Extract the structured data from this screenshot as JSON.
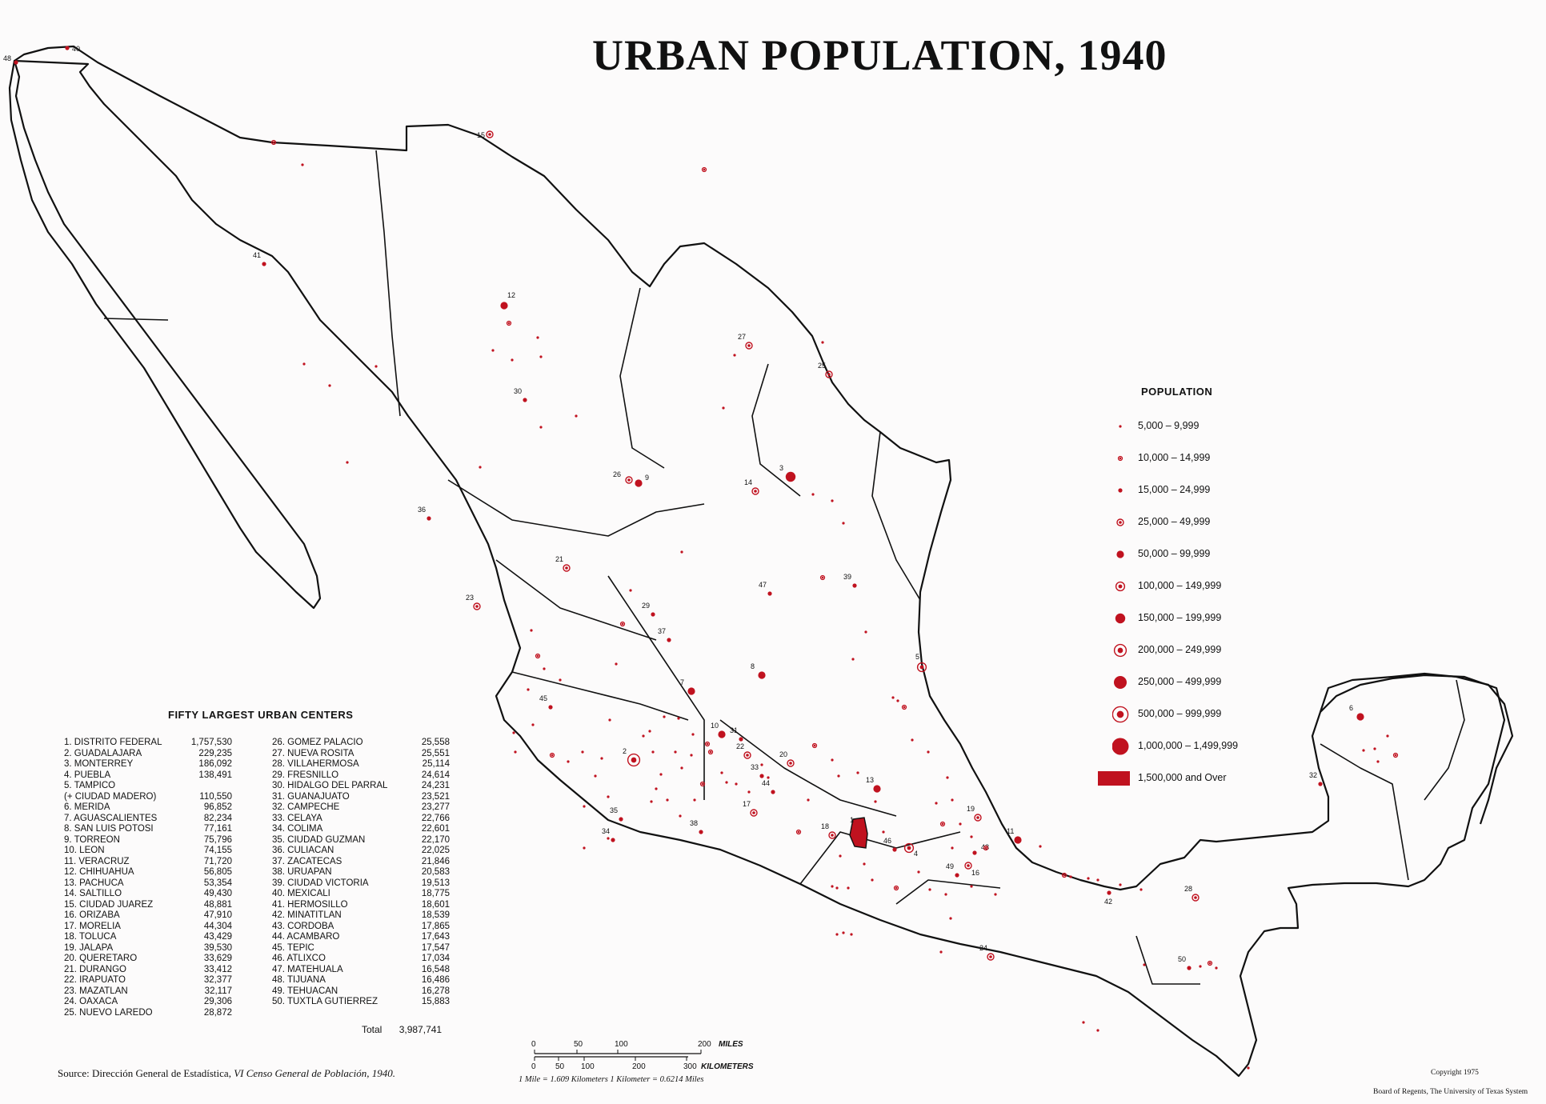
{
  "title": "URBAN POPULATION, 1940",
  "colors": {
    "dot": "#c0121f",
    "border": "#111111",
    "paper": "#fcfbfb"
  },
  "legend": {
    "title": "POPULATION",
    "items": [
      {
        "label": "5,000 – 9,999",
        "symbol": "dot-xs"
      },
      {
        "label": "10,000 – 14,999",
        "symbol": "ring-xs"
      },
      {
        "label": "15,000 – 24,999",
        "symbol": "dot-s"
      },
      {
        "label": "25,000 – 49,999",
        "symbol": "ring-s"
      },
      {
        "label": "50,000 – 99,999",
        "symbol": "dot-m"
      },
      {
        "label": "100,000 – 149,999",
        "symbol": "ring-m"
      },
      {
        "label": "150,000 – 199,999",
        "symbol": "dot-l"
      },
      {
        "label": "200,000 – 249,999",
        "symbol": "ring-l"
      },
      {
        "label": "250,000 – 499,999",
        "symbol": "dot-xl"
      },
      {
        "label": "500,000 – 999,999",
        "symbol": "ring-xl"
      },
      {
        "label": "1,000,000 – 1,499,999",
        "symbol": "dot-xxl"
      },
      {
        "label": "1,500,000 and Over",
        "symbol": "rect"
      }
    ]
  },
  "table": {
    "title": "FIFTY LARGEST URBAN CENTERS",
    "col1": [
      {
        "name": "1. DISTRITO FEDERAL",
        "pop": "1,757,530"
      },
      {
        "name": "2. GUADALAJARA",
        "pop": "229,235"
      },
      {
        "name": "3. MONTERREY",
        "pop": "186,092"
      },
      {
        "name": "4. PUEBLA",
        "pop": "138,491"
      },
      {
        "name": "5. TAMPICO",
        "pop": ""
      },
      {
        "name": "    (+ CIUDAD MADERO)",
        "pop": "110,550"
      },
      {
        "name": "6. MERIDA",
        "pop": "96,852"
      },
      {
        "name": "7. AGUASCALIENTES",
        "pop": "82,234"
      },
      {
        "name": "8. SAN LUIS POTOSI",
        "pop": "77,161"
      },
      {
        "name": "9. TORREON",
        "pop": "75,796"
      },
      {
        "name": "10. LEON",
        "pop": "74,155"
      },
      {
        "name": "11. VERACRUZ",
        "pop": "71,720"
      },
      {
        "name": "12. CHIHUAHUA",
        "pop": "56,805"
      },
      {
        "name": "13. PACHUCA",
        "pop": "53,354"
      },
      {
        "name": "14. SALTILLO",
        "pop": "49,430"
      },
      {
        "name": "15. CIUDAD JUAREZ",
        "pop": "48,881"
      },
      {
        "name": "16. ORIZABA",
        "pop": "47,910"
      },
      {
        "name": "17. MORELIA",
        "pop": "44,304"
      },
      {
        "name": "18. TOLUCA",
        "pop": "43,429"
      },
      {
        "name": "19. JALAPA",
        "pop": "39,530"
      },
      {
        "name": "20. QUERETARO",
        "pop": "33,629"
      },
      {
        "name": "21. DURANGO",
        "pop": "33,412"
      },
      {
        "name": "22. IRAPUATO",
        "pop": "32,377"
      },
      {
        "name": "23. MAZATLAN",
        "pop": "32,117"
      },
      {
        "name": "24. OAXACA",
        "pop": "29,306"
      },
      {
        "name": "25. NUEVO LAREDO",
        "pop": "28,872"
      }
    ],
    "col2": [
      {
        "name": "26. GOMEZ PALACIO",
        "pop": "25,558"
      },
      {
        "name": "27. NUEVA ROSITA",
        "pop": "25,551"
      },
      {
        "name": "28. VILLAHERMOSA",
        "pop": "25,114"
      },
      {
        "name": "29. FRESNILLO",
        "pop": "24,614"
      },
      {
        "name": "30. HIDALGO DEL PARRAL",
        "pop": "24,231"
      },
      {
        "name": "31. GUANAJUATO",
        "pop": "23,521"
      },
      {
        "name": "32. CAMPECHE",
        "pop": "23,277"
      },
      {
        "name": "33. CELAYA",
        "pop": "22,766"
      },
      {
        "name": "34. COLIMA",
        "pop": "22,601"
      },
      {
        "name": "35. CIUDAD GUZMAN",
        "pop": "22,170"
      },
      {
        "name": "36. CULIACAN",
        "pop": "22,025"
      },
      {
        "name": "37. ZACATECAS",
        "pop": "21,846"
      },
      {
        "name": "38. URUAPAN",
        "pop": "20,583"
      },
      {
        "name": "39. CIUDAD VICTORIA",
        "pop": "19,513"
      },
      {
        "name": "40. MEXICALI",
        "pop": "18,775"
      },
      {
        "name": "41. HERMOSILLO",
        "pop": "18,601"
      },
      {
        "name": "42. MINATITLAN",
        "pop": "18,539"
      },
      {
        "name": "43. CORDOBA",
        "pop": "17,865"
      },
      {
        "name": "44. ACAMBARO",
        "pop": "17,643"
      },
      {
        "name": "45. TEPIC",
        "pop": "17,547"
      },
      {
        "name": "46. ATLIXCO",
        "pop": "17,034"
      },
      {
        "name": "47. MATEHUALA",
        "pop": "16,548"
      },
      {
        "name": "48. TIJUANA",
        "pop": "16,486"
      },
      {
        "name": "49. TEHUACAN",
        "pop": "16,278"
      },
      {
        "name": "50. TUXTLA GUTIERREZ",
        "pop": "15,883"
      }
    ],
    "total_label": "Total",
    "total_value": "3,987,741"
  },
  "source": {
    "prefix": "Source:",
    "text": "Dirección General de Estadística,",
    "italic": "VI Censo General de Población,",
    "year": "1940."
  },
  "scale": {
    "miles_ticks": [
      "0",
      "50",
      "100",
      "200"
    ],
    "miles_unit": "MILES",
    "km_ticks": [
      "0",
      "50",
      "100",
      "200",
      "300"
    ],
    "km_unit": "KILOMETERS",
    "note": "1 Mile = 1.609 Kilometers     1 Kilometer = 0.6214 Miles"
  },
  "copyright": "Copyright 1975",
  "board": "Board of Regents, The University of Texas System",
  "cities": [
    {
      "n": "1",
      "sym": "rect"
    },
    {
      "n": "2",
      "sym": "ring-l"
    },
    {
      "n": "3",
      "sym": "dot-l"
    },
    {
      "n": "4",
      "sym": "ring-m"
    },
    {
      "n": "5",
      "sym": "ring-m"
    },
    {
      "n": "6",
      "sym": "dot-m"
    },
    {
      "n": "7",
      "sym": "dot-m"
    },
    {
      "n": "8",
      "sym": "dot-m"
    },
    {
      "n": "9",
      "sym": "dot-m"
    },
    {
      "n": "10",
      "sym": "dot-m"
    },
    {
      "n": "11",
      "sym": "dot-m"
    },
    {
      "n": "12",
      "sym": "dot-m"
    },
    {
      "n": "13",
      "sym": "dot-m"
    },
    {
      "n": "14",
      "sym": "ring-s"
    },
    {
      "n": "15",
      "sym": "ring-s"
    },
    {
      "n": "16",
      "sym": "ring-s"
    },
    {
      "n": "17",
      "sym": "ring-s"
    },
    {
      "n": "18",
      "sym": "ring-s"
    },
    {
      "n": "19",
      "sym": "ring-s"
    },
    {
      "n": "20",
      "sym": "ring-s"
    },
    {
      "n": "21",
      "sym": "ring-s"
    },
    {
      "n": "22",
      "sym": "ring-s"
    },
    {
      "n": "23",
      "sym": "ring-s"
    },
    {
      "n": "24",
      "sym": "ring-s"
    },
    {
      "n": "25",
      "sym": "ring-s"
    },
    {
      "n": "26",
      "sym": "ring-s"
    },
    {
      "n": "27",
      "sym": "ring-s"
    },
    {
      "n": "28",
      "sym": "ring-s"
    },
    {
      "n": "29",
      "sym": "dot-s"
    },
    {
      "n": "30",
      "sym": "dot-s"
    },
    {
      "n": "31",
      "sym": "dot-s"
    },
    {
      "n": "32",
      "sym": "dot-s"
    },
    {
      "n": "33",
      "sym": "dot-s"
    },
    {
      "n": "34",
      "sym": "dot-s"
    },
    {
      "n": "35",
      "sym": "dot-s"
    },
    {
      "n": "36",
      "sym": "dot-s"
    },
    {
      "n": "37",
      "sym": "dot-s"
    },
    {
      "n": "38",
      "sym": "dot-s"
    },
    {
      "n": "39",
      "sym": "dot-s"
    },
    {
      "n": "40",
      "sym": "dot-s"
    },
    {
      "n": "41",
      "sym": "dot-s"
    },
    {
      "n": "42",
      "sym": "dot-s"
    },
    {
      "n": "43",
      "sym": "dot-s"
    },
    {
      "n": "44",
      "sym": "dot-s"
    },
    {
      "n": "45",
      "sym": "dot-s"
    },
    {
      "n": "46",
      "sym": "dot-s"
    },
    {
      "n": "47",
      "sym": "dot-s"
    },
    {
      "n": "48",
      "sym": "dot-s"
    },
    {
      "n": "49",
      "sym": "dot-s"
    },
    {
      "n": "50",
      "sym": "dot-s"
    }
  ]
}
